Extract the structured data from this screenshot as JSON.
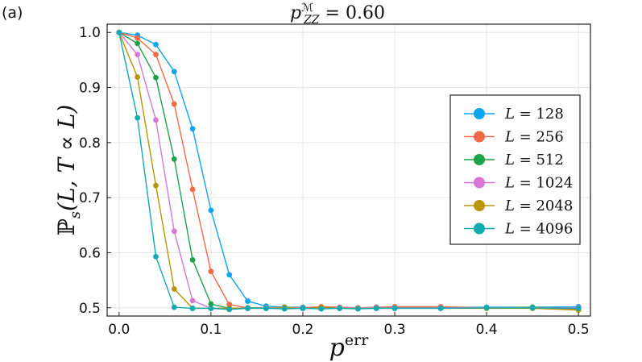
{
  "panel_label": "(a)",
  "chart_data": {
    "type": "line",
    "title": "p_ZZ^M = 0.60",
    "title_parts": {
      "base": "p",
      "sup": "ℳ",
      "sub": "ZZ",
      "rest": " = 0.60"
    },
    "xlabel": "p^err",
    "xlabel_parts": {
      "base": "p",
      "sup": "err"
    },
    "ylabel": "ℙs(L, T ∝ L)",
    "ylabel_parts": {
      "pre": "ℙ",
      "sub": "s",
      "post": "(L, T ∝ L)"
    },
    "xlim": [
      -0.013,
      0.513
    ],
    "ylim": [
      0.485,
      1.015
    ],
    "xticks": [
      0.0,
      0.1,
      0.2,
      0.3,
      0.4,
      0.5
    ],
    "xtick_labels": [
      "0.0",
      "0.1",
      "0.2",
      "0.3",
      "0.4",
      "0.5"
    ],
    "yticks": [
      0.5,
      0.6,
      0.7,
      0.8,
      0.9,
      1.0
    ],
    "ytick_labels": [
      "0.5",
      "0.6",
      "0.7",
      "0.8",
      "0.9",
      "1.0"
    ],
    "grid": true,
    "legend_position": "right",
    "series": [
      {
        "name": "L = 128",
        "label": "128",
        "color": "#0ea5ee",
        "x": [
          0.0,
          0.02,
          0.04,
          0.06,
          0.08,
          0.1,
          0.12,
          0.14,
          0.16,
          0.18,
          0.2,
          0.22,
          0.24,
          0.26,
          0.28,
          0.3,
          0.35,
          0.4,
          0.45,
          0.5
        ],
        "y": [
          1.0,
          0.995,
          0.978,
          0.929,
          0.825,
          0.677,
          0.56,
          0.512,
          0.503,
          0.501,
          0.501,
          0.5,
          0.501,
          0.5,
          0.501,
          0.501,
          0.501,
          0.501,
          0.501,
          0.502
        ]
      },
      {
        "name": "L = 256",
        "label": "256",
        "color": "#f06a45",
        "x": [
          0.0,
          0.02,
          0.04,
          0.06,
          0.08,
          0.1,
          0.12,
          0.14,
          0.16,
          0.18,
          0.2,
          0.22,
          0.24,
          0.26,
          0.28,
          0.3,
          0.35,
          0.4,
          0.45,
          0.5
        ],
        "y": [
          1.0,
          0.99,
          0.96,
          0.87,
          0.715,
          0.566,
          0.506,
          0.5,
          0.5,
          0.501,
          0.5,
          0.502,
          0.501,
          0.5,
          0.501,
          0.502,
          0.502,
          0.5,
          0.5,
          0.497
        ]
      },
      {
        "name": "L = 512",
        "label": "512",
        "color": "#1fa34a",
        "x": [
          0.0,
          0.02,
          0.04,
          0.06,
          0.08,
          0.1,
          0.12,
          0.14,
          0.16,
          0.18,
          0.2,
          0.22,
          0.24,
          0.26,
          0.28,
          0.3,
          0.35,
          0.4,
          0.45,
          0.5
        ],
        "y": [
          1.0,
          0.98,
          0.918,
          0.77,
          0.587,
          0.507,
          0.499,
          0.5,
          0.5,
          0.501,
          0.5,
          0.5,
          0.5,
          0.5,
          0.5,
          0.5,
          0.5,
          0.5,
          0.501,
          0.499
        ]
      },
      {
        "name": "L = 1024",
        "label": "1024",
        "color": "#d977d7",
        "x": [
          0.0,
          0.02,
          0.04,
          0.06,
          0.08,
          0.1,
          0.12,
          0.14,
          0.16,
          0.18,
          0.2,
          0.22,
          0.24,
          0.26,
          0.28,
          0.3,
          0.35,
          0.4,
          0.45,
          0.5
        ],
        "y": [
          1.0,
          0.96,
          0.841,
          0.639,
          0.513,
          0.499,
          0.499,
          0.499,
          0.5,
          0.5,
          0.5,
          0.499,
          0.5,
          0.5,
          0.5,
          0.5,
          0.5,
          0.5,
          0.5,
          0.5
        ]
      },
      {
        "name": "L = 2048",
        "label": "2048",
        "color": "#b8950a",
        "x": [
          0.0,
          0.02,
          0.04,
          0.06,
          0.08,
          0.1,
          0.12,
          0.14,
          0.16,
          0.18,
          0.2,
          0.22,
          0.24,
          0.26,
          0.28,
          0.3,
          0.35,
          0.4,
          0.45,
          0.5
        ],
        "y": [
          1.0,
          0.919,
          0.722,
          0.534,
          0.499,
          0.499,
          0.499,
          0.499,
          0.499,
          0.5,
          0.499,
          0.5,
          0.499,
          0.499,
          0.499,
          0.499,
          0.499,
          0.499,
          0.499,
          0.496
        ]
      },
      {
        "name": "L = 4096",
        "label": "4096",
        "color": "#10aab0",
        "x": [
          0.0,
          0.02,
          0.04,
          0.06,
          0.08,
          0.1,
          0.12,
          0.14,
          0.16,
          0.18,
          0.2,
          0.22,
          0.24,
          0.26,
          0.28,
          0.3,
          0.35,
          0.4,
          0.45,
          0.5
        ],
        "y": [
          1.0,
          0.845,
          0.593,
          0.501,
          0.499,
          0.499,
          0.497,
          0.499,
          0.499,
          0.498,
          0.499,
          0.498,
          0.499,
          0.498,
          0.499,
          0.499,
          0.499,
          0.5,
          0.5,
          0.499
        ]
      }
    ]
  }
}
